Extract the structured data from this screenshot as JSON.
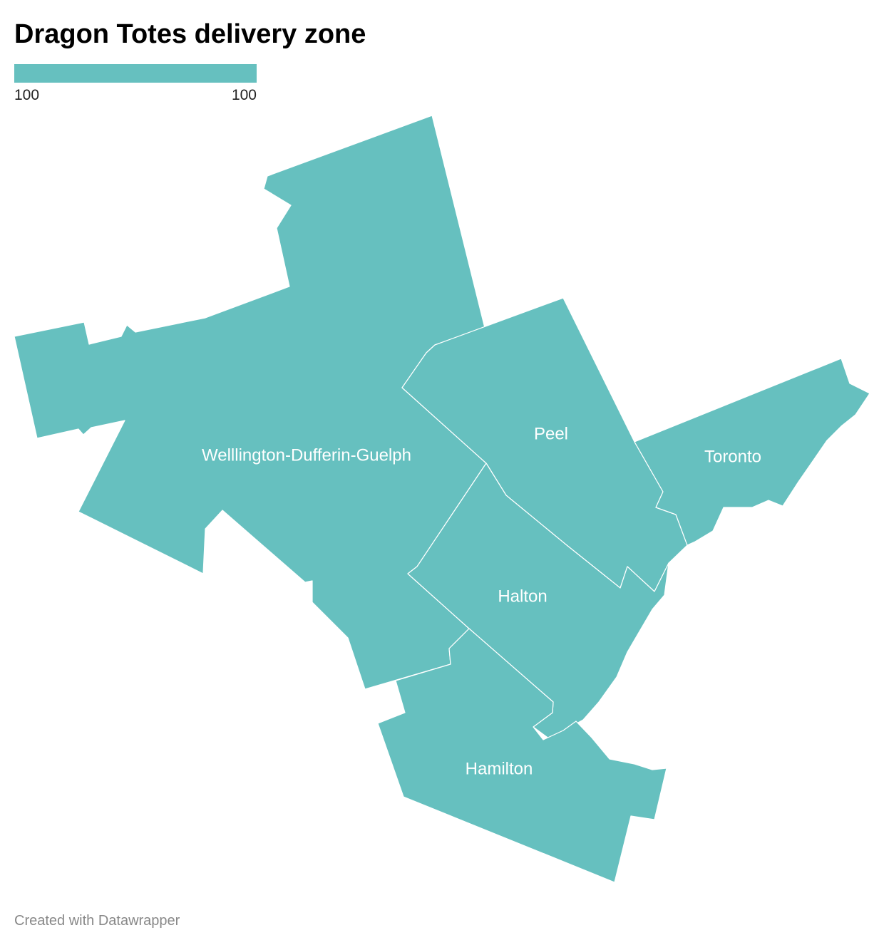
{
  "title": "Dragon Totes delivery zone",
  "legend": {
    "ticks": [
      100,
      100
    ],
    "color": "#66c0bf"
  },
  "regions": [
    {
      "name": "Welllington-Dufferin-Guelph",
      "value": 100
    },
    {
      "name": "Peel",
      "value": 100
    },
    {
      "name": "Toronto",
      "value": 100
    },
    {
      "name": "Halton",
      "value": 100
    },
    {
      "name": "Hamilton",
      "value": 100
    }
  ],
  "footer": "Created with Datawrapper"
}
